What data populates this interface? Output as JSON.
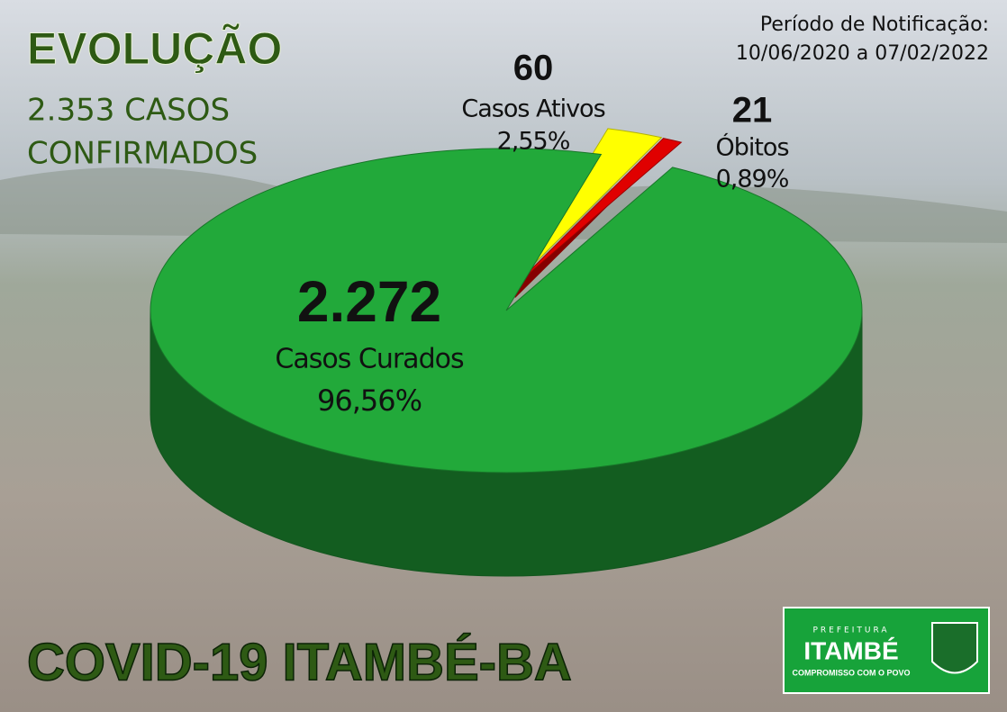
{
  "chart_data": {
    "type": "pie",
    "title": "EVOLUÇÃO",
    "subtitle": [
      "2.353 CASOS",
      "CONFIRMADOS"
    ],
    "period_title": "Período de Notificação:",
    "period": "10/06/2020 a 07/02/2022",
    "categories": [
      "Casos Curados",
      "Casos Ativos",
      "Óbitos"
    ],
    "values": [
      2272,
      60,
      21
    ],
    "value_labels": [
      "2.272",
      "60",
      "21"
    ],
    "percentages": [
      96.56,
      2.55,
      0.89
    ],
    "percentage_labels": [
      "96,56%",
      "2,55%",
      "0,89%"
    ],
    "colors": [
      "#22a93a",
      "#ffff00",
      "#e00000"
    ],
    "footer": "COVID-19  ITAMBÉ-BA",
    "logo": {
      "top": "PREFEITURA",
      "name": "ITAMBÉ",
      "slogan": "COMPROMISSO COM O POVO"
    }
  }
}
